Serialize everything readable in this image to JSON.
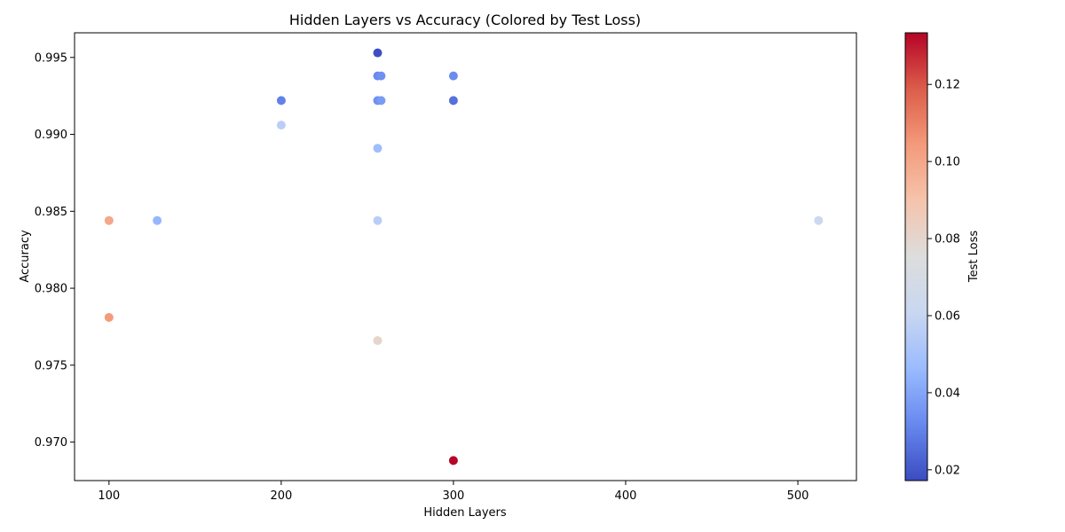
{
  "chart_data": {
    "type": "scatter",
    "title": "Hidden Layers vs Accuracy (Colored by Test Loss)",
    "xlabel": "Hidden Layers",
    "ylabel": "Accuracy",
    "colorbar_label": "Test Loss",
    "xlim": [
      80,
      534
    ],
    "ylim": [
      0.9675,
      0.9966
    ],
    "clim": [
      0.0172,
      0.1334
    ],
    "x_ticks": [
      {
        "value": 100,
        "label": "100"
      },
      {
        "value": 200,
        "label": "200"
      },
      {
        "value": 300,
        "label": "300"
      },
      {
        "value": 400,
        "label": "400"
      },
      {
        "value": 500,
        "label": "500"
      }
    ],
    "y_ticks": [
      {
        "value": 0.97,
        "label": "0.970"
      },
      {
        "value": 0.975,
        "label": "0.975"
      },
      {
        "value": 0.98,
        "label": "0.980"
      },
      {
        "value": 0.985,
        "label": "0.985"
      },
      {
        "value": 0.99,
        "label": "0.990"
      },
      {
        "value": 0.995,
        "label": "0.995"
      }
    ],
    "colorbar_ticks": [
      {
        "value": 0.02,
        "label": "0.02"
      },
      {
        "value": 0.04,
        "label": "0.04"
      },
      {
        "value": 0.06,
        "label": "0.06"
      },
      {
        "value": 0.08,
        "label": "0.08"
      },
      {
        "value": 0.1,
        "label": "0.10"
      },
      {
        "value": 0.12,
        "label": "0.12"
      }
    ],
    "colormap": "coolwarm",
    "colormap_stops": [
      "#3b4cc0",
      "#6788ee",
      "#9abbff",
      "#c9d7f0",
      "#dddddd",
      "#f5c4ac",
      "#f49a7b",
      "#dc5d4a",
      "#b40426"
    ],
    "grid": false,
    "points": [
      {
        "x": 256,
        "y": 0.9953,
        "loss": 0.018
      },
      {
        "x": 256,
        "y": 0.9938,
        "loss": 0.032
      },
      {
        "x": 258,
        "y": 0.9938,
        "loss": 0.034
      },
      {
        "x": 300,
        "y": 0.9938,
        "loss": 0.033
      },
      {
        "x": 200,
        "y": 0.9922,
        "loss": 0.03
      },
      {
        "x": 256,
        "y": 0.9922,
        "loss": 0.034
      },
      {
        "x": 258,
        "y": 0.9922,
        "loss": 0.037
      },
      {
        "x": 300,
        "y": 0.9922,
        "loss": 0.026
      },
      {
        "x": 200,
        "y": 0.9906,
        "loss": 0.056
      },
      {
        "x": 256,
        "y": 0.9891,
        "loss": 0.048
      },
      {
        "x": 100,
        "y": 0.9844,
        "loss": 0.1
      },
      {
        "x": 128,
        "y": 0.9844,
        "loss": 0.045
      },
      {
        "x": 256,
        "y": 0.9844,
        "loss": 0.056
      },
      {
        "x": 512,
        "y": 0.9844,
        "loss": 0.062
      },
      {
        "x": 100,
        "y": 0.9781,
        "loss": 0.104
      },
      {
        "x": 256,
        "y": 0.9766,
        "loss": 0.08
      },
      {
        "x": 300,
        "y": 0.9688,
        "loss": 0.133
      }
    ]
  }
}
